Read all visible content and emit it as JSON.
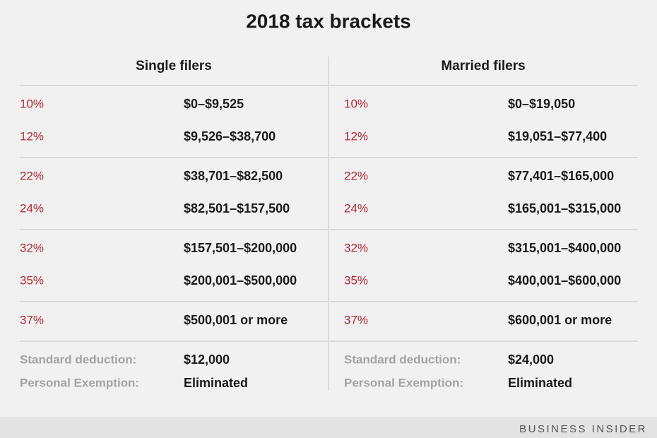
{
  "title": "2018 tax brackets",
  "columns": [
    {
      "header": "Single filers",
      "groups": [
        [
          {
            "rate": "10%",
            "range": "$0–$9,525"
          },
          {
            "rate": "12%",
            "range": "$9,526–$38,700"
          }
        ],
        [
          {
            "rate": "22%",
            "range": "$38,701–$82,500"
          },
          {
            "rate": "24%",
            "range": "$82,501–$157,500"
          }
        ],
        [
          {
            "rate": "32%",
            "range": "$157,501–$200,000"
          },
          {
            "rate": "35%",
            "range": "$200,001–$500,000"
          }
        ],
        [
          {
            "rate": "37%",
            "range": "$500,001 or more"
          }
        ]
      ],
      "deductions": [
        {
          "label": "Standard deduction:",
          "value": "$12,000"
        },
        {
          "label": "Personal Exemption:",
          "value": "Eliminated"
        }
      ]
    },
    {
      "header": "Married filers",
      "groups": [
        [
          {
            "rate": "10%",
            "range": "$0–$19,050"
          },
          {
            "rate": "12%",
            "range": "$19,051–$77,400"
          }
        ],
        [
          {
            "rate": "22%",
            "range": "$77,401–$165,000"
          },
          {
            "rate": "24%",
            "range": "$165,001–$315,000"
          }
        ],
        [
          {
            "rate": "32%",
            "range": "$315,001–$400,000"
          },
          {
            "rate": "35%",
            "range": "$400,001–$600,000"
          }
        ],
        [
          {
            "rate": "37%",
            "range": "$600,001 or more"
          }
        ]
      ],
      "deductions": [
        {
          "label": "Standard deduction:",
          "value": "$24,000"
        },
        {
          "label": "Personal Exemption:",
          "value": "Eliminated"
        }
      ]
    }
  ],
  "footer": "BUSINESS INSIDER"
}
